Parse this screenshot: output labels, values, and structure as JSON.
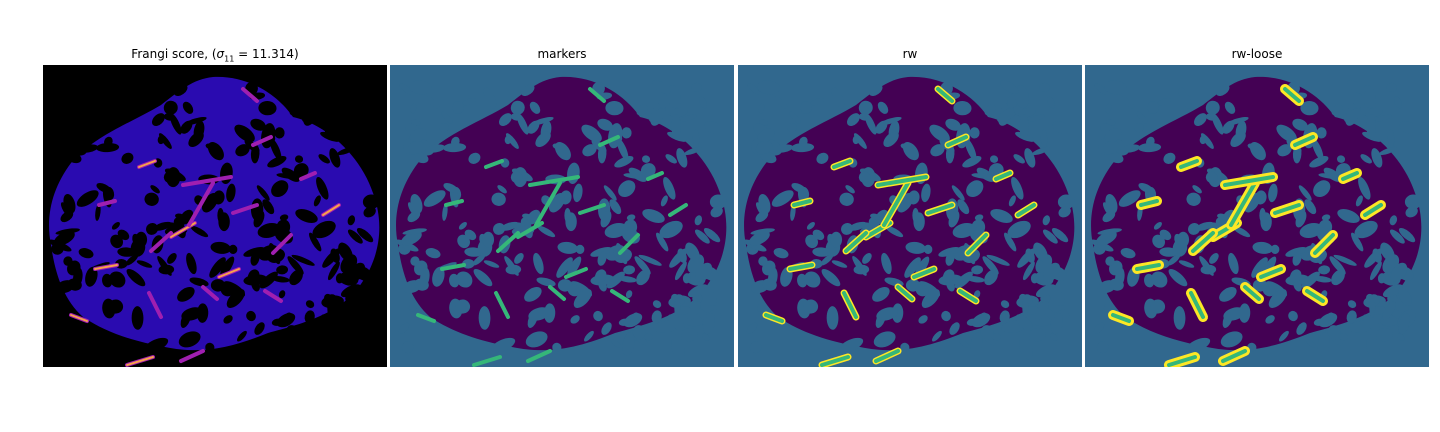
{
  "figure": {
    "panels": [
      {
        "id": "frangi",
        "title_prefix": "Frangi score, (",
        "title_sigma": "σ",
        "title_sub": "11",
        "title_suffix": " = 11.314)"
      },
      {
        "id": "markers",
        "title": "markers"
      },
      {
        "id": "rw",
        "title": "rw"
      },
      {
        "id": "rw-loose",
        "title": "rw-loose"
      }
    ],
    "colors": {
      "background_dark": "#000000",
      "vessel_blue": "#2a0bb0",
      "hot_purple": "#a01fb0",
      "hot_orange": "#f7a24a",
      "label_background": "#31688e",
      "label_tissue": "#440154",
      "marker_green": "#35b779",
      "rw_yellow": "#fde725"
    }
  }
}
